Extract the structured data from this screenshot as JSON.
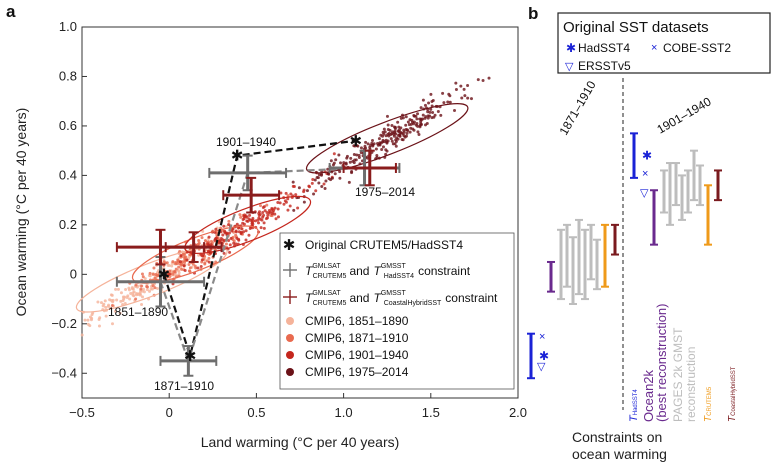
{
  "panel_a": {
    "label": "a",
    "chart_data": {
      "type": "scatter",
      "xlabel": "Land warming (°C per 40 years)",
      "ylabel": "Ocean warming (°C per 40 years)",
      "xlim": [
        -0.5,
        2.0
      ],
      "ylim": [
        -0.5,
        1.0
      ],
      "xticks": [
        "−0.5",
        "0",
        "0.5",
        "1.0",
        "1.5",
        "2.0"
      ],
      "xtick_values": [
        -0.5,
        0,
        0.5,
        1.0,
        1.5,
        2.0
      ],
      "yticks": [
        "−0.4",
        "−0.2",
        "0",
        "0.2",
        "0.4",
        "0.6",
        "0.8",
        "1.0"
      ],
      "ytick_values": [
        -0.4,
        -0.2,
        0,
        0.2,
        0.4,
        0.6,
        0.8,
        1.0
      ],
      "clouds": [
        {
          "name": "CMIP6, 1851–1890",
          "color": "#f5b39a",
          "cx": -0.1,
          "cy": -0.02,
          "sx": 0.42,
          "sy": 0.12
        },
        {
          "name": "CMIP6, 1871–1910",
          "color": "#e96a4f",
          "cx": 0.15,
          "cy": 0.08,
          "sx": 0.35,
          "sy": 0.1
        },
        {
          "name": "CMIP6, 1901–1940",
          "color": "#c4261d",
          "cx": 0.45,
          "cy": 0.2,
          "sx": 0.35,
          "sy": 0.1
        },
        {
          "name": "CMIP6, 1975–2014",
          "color": "#6b1218",
          "cx": 1.25,
          "cy": 0.55,
          "sx": 0.45,
          "sy": 0.18
        }
      ],
      "original": [
        {
          "period": "1851–1890",
          "x": -0.03,
          "y": 0.0
        },
        {
          "period": "1871–1910",
          "x": 0.12,
          "y": -0.33
        },
        {
          "period": "1901–1940",
          "x": 0.39,
          "y": 0.48
        },
        {
          "period": "1975–2014",
          "x": 1.07,
          "y": 0.54
        }
      ],
      "constraint_hadsst4": [
        {
          "x": -0.05,
          "y": -0.03,
          "xerr": 0.25,
          "yerr": 0.1
        },
        {
          "x": 0.11,
          "y": -0.35,
          "xerr": 0.16,
          "yerr": 0.06
        },
        {
          "x": 0.45,
          "y": 0.41,
          "xerr": 0.22,
          "yerr": 0.07
        },
        {
          "x": 1.12,
          "y": 0.43,
          "xerr": 0.2,
          "yerr": 0.07
        }
      ],
      "constraint_coastal": [
        {
          "x": -0.05,
          "y": 0.11,
          "xerr": 0.25,
          "yerr": 0.07
        },
        {
          "x": 0.14,
          "y": 0.11,
          "xerr": 0.16,
          "yerr": 0.06
        },
        {
          "x": 0.47,
          "y": 0.32,
          "xerr": 0.16,
          "yerr": 0.07
        },
        {
          "x": 1.15,
          "y": 0.43,
          "xerr": 0.15,
          "yerr": 0.07
        }
      ],
      "annotations": [
        "1851–1890",
        "1871–1910",
        "1901–1940",
        "1975–2014"
      ]
    },
    "legend": {
      "original": "Original CRUTEM5/HadSST4",
      "constraint1": "and",
      "constraint1_tail": "constraint",
      "constraint2": "and",
      "constraint2_tail": "constraint",
      "t_gmlsat": "GMLSAT",
      "t_crutem5": "CRUTEM5",
      "t_gmsst": "GMSST",
      "t_hadsst4": "HadSST4",
      "t_coastal": "CoastalHybridSST",
      "c1": "CMIP6, 1851–1890",
      "c2": "CMIP6, 1871–1910",
      "c3": "CMIP6, 1901–1940",
      "c4": "CMIP6, 1975–2014"
    }
  },
  "panel_b": {
    "label": "b",
    "legend_title": "Original SST datasets",
    "legend_items": [
      "HadSST4",
      "COBE-SST2",
      "ERSSTv5"
    ],
    "periods": [
      "1871–1910",
      "1901–1940"
    ],
    "chart_data": {
      "type": "errorbar",
      "ylim": [
        -0.5,
        1.0
      ],
      "groups": [
        {
          "period": "1871–1910",
          "hadsst4": -0.33,
          "cobe": -0.25,
          "ersst": -0.37,
          "ocean2k": [
            -0.07,
            0.05
          ],
          "pages": [
            [
              -0.1,
              0.18
            ],
            [
              -0.05,
              0.2
            ],
            [
              -0.12,
              0.15
            ],
            [
              -0.08,
              0.22
            ],
            [
              -0.1,
              0.18
            ],
            [
              -0.02,
              0.2
            ],
            [
              -0.06,
              0.14
            ]
          ],
          "crutem5": [
            -0.05,
            0.2
          ],
          "coastal": [
            0.08,
            0.2
          ]
        },
        {
          "period": "1901–1940",
          "hadsst4": 0.48,
          "cobe": 0.41,
          "ersst": 0.33,
          "ocean2k": [
            0.12,
            0.34
          ],
          "pages": [
            [
              0.25,
              0.42
            ],
            [
              0.2,
              0.45
            ],
            [
              0.28,
              0.45
            ],
            [
              0.22,
              0.4
            ],
            [
              0.25,
              0.42
            ],
            [
              0.3,
              0.5
            ],
            [
              0.28,
              0.44
            ]
          ],
          "crutem5": [
            0.12,
            0.36
          ],
          "coastal": [
            0.3,
            0.42
          ]
        }
      ],
      "bottom_labels": [
        "HadSST4",
        "Ocean2k",
        "(best reconstruction)",
        "PAGES 2k GMST",
        "reconstruction",
        "CRUTEM5",
        "CoastalHybridSST"
      ],
      "footer": [
        "Constraints on",
        "ocean warming"
      ]
    },
    "colors": {
      "hadsst4": "#1a22d6",
      "ocean2k": "#6a2a8e",
      "pages": "#bdbdbd",
      "crutem5": "#ef9a1a",
      "coastal": "#7a1a1e",
      "constraint_grey": "#6e6e6e",
      "constraint_red": "#8a1c1c"
    }
  }
}
